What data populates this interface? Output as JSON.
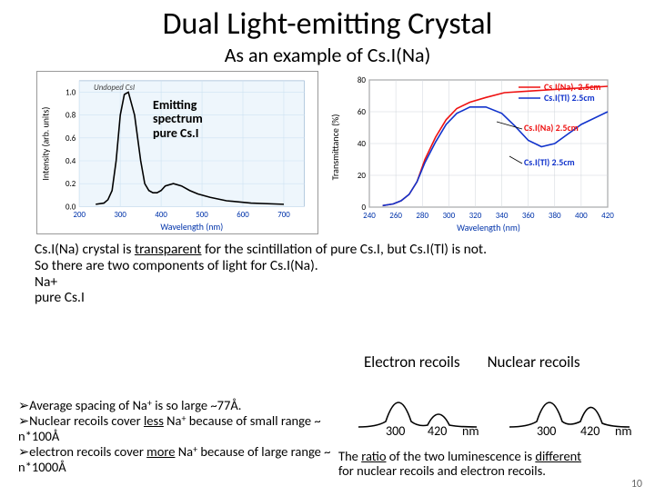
{
  "title": "Dual Light-emitting Crystal",
  "subtitle": "As an example of Cs.I(Na)",
  "chart_left": {
    "type": "line",
    "xlabel": "Wavelength (nm)",
    "ylabel": "Intensity (arb. units)",
    "xlim": [
      200,
      750
    ],
    "ylim": [
      0.0,
      1.1
    ],
    "xticks": [
      200,
      300,
      400,
      500,
      600,
      700
    ],
    "yticks": [
      0.0,
      0.2,
      0.4,
      0.6,
      0.8,
      1.0
    ],
    "grid_color": "#cde2f2",
    "background_color": "#eef6fc",
    "curve_color": "#000000",
    "curve_width": 1.6,
    "points_x": [
      240,
      260,
      270,
      280,
      290,
      300,
      310,
      320,
      335,
      350,
      360,
      370,
      380,
      390,
      400,
      410,
      430,
      450,
      470,
      490,
      520,
      560,
      620,
      700
    ],
    "points_y": [
      0.02,
      0.03,
      0.06,
      0.14,
      0.4,
      0.8,
      0.98,
      1.0,
      0.8,
      0.4,
      0.2,
      0.14,
      0.12,
      0.12,
      0.14,
      0.18,
      0.2,
      0.18,
      0.14,
      0.11,
      0.08,
      0.05,
      0.03,
      0.02
    ],
    "legend": "Undoped CsI",
    "note_lines": [
      "Emitting",
      "spectrum",
      "pure Cs.I"
    ]
  },
  "chart_right": {
    "type": "line",
    "xlabel": "Wavelength (nm)",
    "ylabel": "Transmittance (%)",
    "xlim": [
      240,
      420
    ],
    "ylim": [
      0,
      80
    ],
    "xticks": [
      240,
      260,
      280,
      300,
      320,
      340,
      360,
      380,
      400,
      420
    ],
    "yticks": [
      0,
      20,
      40,
      60,
      80
    ],
    "grid_color": "#cfd4da",
    "legend1": {
      "label": "Cs.I(Na). 2.5cm",
      "color": "#ee1111"
    },
    "legend2": {
      "label": "Cs.I(Tl) 2.5cm",
      "color": "#1133cc"
    },
    "series1": {
      "color": "#ee1111",
      "width": 1.6,
      "x": [
        250,
        258,
        264,
        270,
        276,
        282,
        290,
        298,
        306,
        316,
        328,
        342,
        360,
        380,
        400,
        420
      ],
      "y": [
        1,
        2,
        4,
        8,
        16,
        30,
        44,
        55,
        62,
        66,
        69,
        72,
        73,
        74,
        75,
        76
      ]
    },
    "series2": {
      "color": "#1133cc",
      "width": 1.6,
      "x": [
        250,
        258,
        264,
        270,
        276,
        282,
        290,
        298,
        306,
        316,
        328,
        340,
        350,
        360,
        370,
        380,
        390,
        400,
        420
      ],
      "y": [
        1,
        2,
        4,
        8,
        16,
        28,
        41,
        52,
        59,
        63,
        63,
        59,
        51,
        42,
        38,
        40,
        46,
        52,
        60
      ]
    },
    "annot1": {
      "text": "Cs.I(Na) 2.5cm",
      "color": "#ee1111"
    },
    "annot2": {
      "text": "Cs.I(Tl) 2.5cm",
      "color": "#1133cc"
    }
  },
  "para": {
    "line1a": "Cs.I(Na) crystal is ",
    "line1b": "transparent",
    "line1c": " for the scintillation of pure Cs.I, but Cs.I(Tl) is not.",
    "line2": "So there are two components of light for Cs.I(Na).",
    "line3": "Na+",
    "line4": "pure Cs.I"
  },
  "recoil_labels": {
    "electron": "Electron recoils",
    "nuclear": "Nuclear recoils"
  },
  "bullets": {
    "b1a": "Average spacing of Na",
    "b1b": " is so large ~77Å.",
    "b2a": "Nuclear recoils cover ",
    "b2b": "less",
    "b2c": " Na",
    "b2d": " because of small range ~ n*100Å",
    "b3a": "electron recoils cover ",
    "b3b": "more",
    "b3c": " Na",
    "b3d": " because of large range ~ n*1000Å"
  },
  "dual_sketch": {
    "curve_color": "#000000",
    "nums": [
      "300",
      "420",
      "nm",
      "300",
      "420",
      "nm"
    ]
  },
  "ratio_text": {
    "t1": "The ",
    "t2": "ratio",
    "t3": " of the two luminescence is ",
    "t4": "different",
    "t5": "for nuclear recoils and electron recoils."
  },
  "page_number": "10",
  "arrow_glyph": "➢"
}
